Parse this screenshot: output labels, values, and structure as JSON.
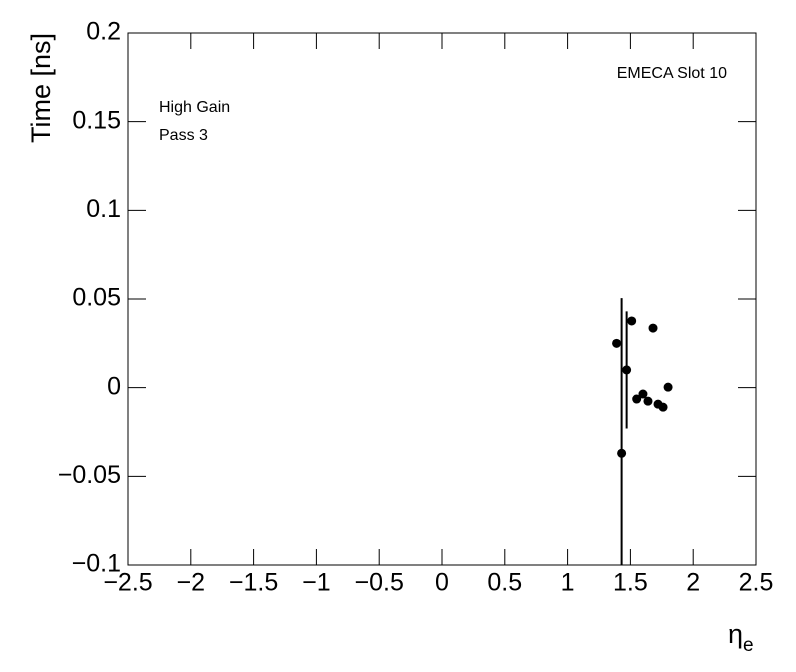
{
  "chart_data": {
    "type": "scatter",
    "ylabel": "Time [ns]",
    "xlabel": "η",
    "xlabel_subscript": "e",
    "annotations": [
      "EMECA Slot 10",
      "High Gain",
      "Pass 3"
    ],
    "x": [
      1.39,
      1.43,
      1.47,
      1.51,
      1.55,
      1.6,
      1.64,
      1.68,
      1.72,
      1.76,
      1.8
    ],
    "series": [
      {
        "name": "EMECA Slot 10",
        "color": "#000000",
        "values": [
          0.025,
          -0.037,
          0.01,
          0.0376,
          -0.0064,
          -0.0036,
          -0.0076,
          0.0336,
          -0.0093,
          -0.011,
          0.0003
        ],
        "errors": [
          0.001,
          0.0875,
          0.033,
          0.001,
          0.001,
          0.001,
          0.001,
          0.001,
          0.001,
          0.001,
          0.001
        ]
      }
    ],
    "xlim": [
      -2.5,
      2.5
    ],
    "ylim": [
      -0.1,
      0.2
    ],
    "xticks": [
      {
        "value": -2.5,
        "label": "−2.5"
      },
      {
        "value": -2,
        "label": "−2"
      },
      {
        "value": -1.5,
        "label": "−1.5"
      },
      {
        "value": -1,
        "label": "−1"
      },
      {
        "value": -0.5,
        "label": "−0.5"
      },
      0,
      0.5,
      1,
      1.5,
      2,
      2.5
    ],
    "yticks": [
      {
        "value": -0.1,
        "label": "−0.1"
      },
      {
        "value": -0.05,
        "label": "−0.05"
      },
      0,
      0.05,
      0.1,
      0.15,
      0.2
    ]
  }
}
